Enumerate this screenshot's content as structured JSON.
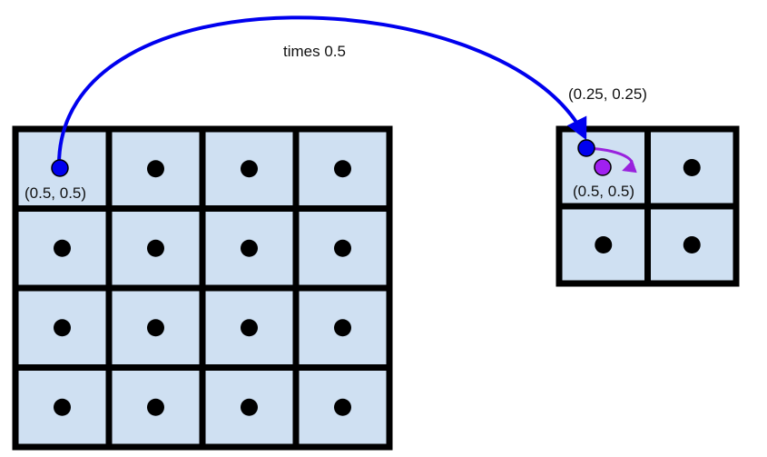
{
  "title": "times 0.5",
  "large_grid": {
    "rows": 4,
    "cols": 4,
    "highlight_cell": [
      0,
      0
    ],
    "highlight_label": "(0.5, 0.5)"
  },
  "small_grid": {
    "rows": 2,
    "cols": 2,
    "mapped_label": "(0.25, 0.25)",
    "center_label": "(0.5, 0.5)"
  },
  "colors": {
    "cell_fill": "#cfe0f2",
    "grid_line": "#000000",
    "dot": "#000000",
    "mapped_point": "#0000ee",
    "shifted_point": "#a020f0",
    "main_arrow": "#0000ee",
    "small_arrow": "#9922dd"
  }
}
